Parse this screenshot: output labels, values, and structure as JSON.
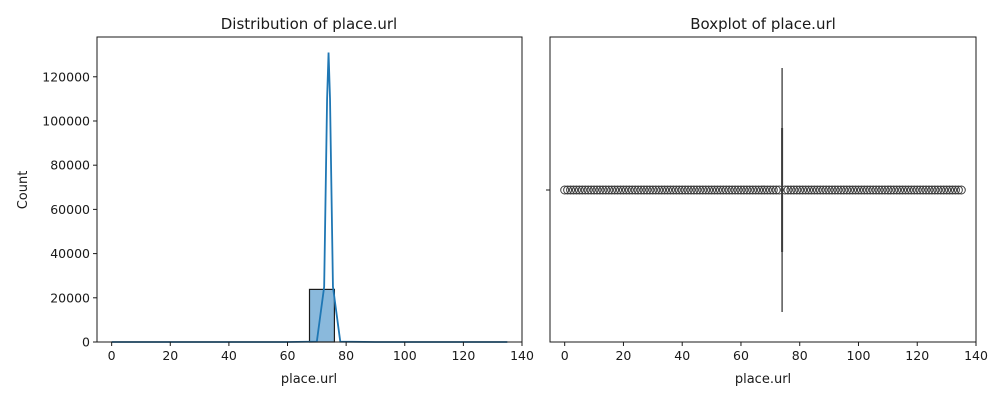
{
  "chart_data": [
    {
      "type": "histogram",
      "title": "Distribution of place.url",
      "xlabel": "place.url",
      "ylabel": "Count",
      "xlim": [
        -5,
        140
      ],
      "ylim": [
        0,
        138000
      ],
      "x_ticks": [
        0,
        20,
        40,
        60,
        80,
        100,
        120,
        140
      ],
      "y_ticks": [
        0,
        20000,
        40000,
        60000,
        80000,
        100000,
        120000
      ],
      "bins": [
        {
          "x0": 67.5,
          "x1": 76.0,
          "count": 23800
        }
      ],
      "kde": [
        [
          0,
          0
        ],
        [
          60,
          0
        ],
        [
          70,
          150
        ],
        [
          72.5,
          25000
        ],
        [
          73.5,
          110000
        ],
        [
          74.0,
          131000
        ],
        [
          74.5,
          110000
        ],
        [
          75.5,
          25000
        ],
        [
          78,
          150
        ],
        [
          90,
          0
        ],
        [
          135,
          0
        ]
      ],
      "colors": {
        "bar": "#8ab9dc",
        "bar_edge": "#1a1a1a",
        "kde": "#1f77b4"
      }
    },
    {
      "type": "boxplot",
      "title": "Boxplot of place.url",
      "xlabel": "place.url",
      "xlim": [
        -5,
        140
      ],
      "x_ticks": [
        0,
        20,
        40,
        60,
        80,
        100,
        120,
        140
      ],
      "median": 74,
      "q1": 74,
      "q3": 74,
      "outlier_range": [
        0,
        135
      ],
      "outlier_step": 1,
      "colors": {
        "line": "#3c3c3c",
        "outlier": "#3c3c3c"
      }
    }
  ]
}
